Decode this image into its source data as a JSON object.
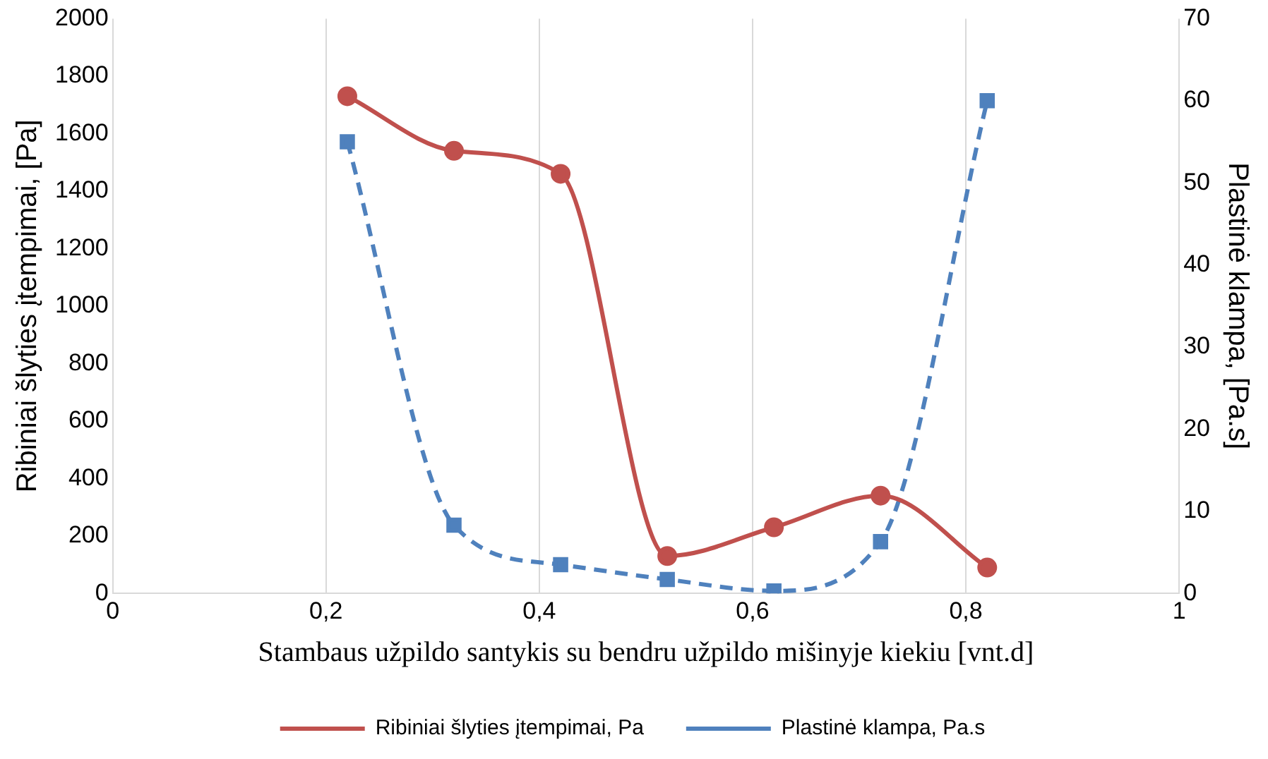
{
  "chart_data": {
    "type": "line",
    "xlabel": "Stambaus užpildo santykis su bendru užpildo mišinyje kiekiu [vnt.d]",
    "ylabel": "Ribiniai šlyties įtempimai, [Pa]",
    "y2label": "Plastinė klampa, [Pa.s]",
    "x": [
      0.22,
      0.32,
      0.42,
      0.52,
      0.62,
      0.72,
      0.82
    ],
    "series": [
      {
        "name": "Ribiniai šlyties įtempimai, Pa",
        "color": "#c0504d",
        "values": [
          1730,
          1540,
          1460,
          130,
          230,
          340,
          90
        ],
        "marker": "circle",
        "line_style": "solid"
      },
      {
        "name": "Plastinė klampa, Pa.s",
        "color": "#4f81bd",
        "axis": "y2",
        "values": [
          55,
          8.3,
          3.5,
          1.7,
          0.3,
          6.3,
          60
        ],
        "marker": "square",
        "line_style": "dashed"
      }
    ],
    "xlim": [
      0,
      1
    ],
    "xticks": [
      0,
      {
        "value": 0.2,
        "label": "0,2"
      },
      {
        "value": 0.4,
        "label": "0,4"
      },
      {
        "value": 0.6,
        "label": "0,6"
      },
      {
        "value": 0.8,
        "label": "0,8"
      },
      1
    ],
    "ylim": [
      0,
      2000
    ],
    "yticks": [
      0,
      200,
      400,
      600,
      800,
      1000,
      1200,
      1400,
      1600,
      1800,
      2000
    ],
    "y2lim": [
      0,
      70
    ],
    "y2ticks": [
      0,
      10,
      20,
      30,
      40,
      50,
      60,
      70
    ],
    "grid": "x",
    "legend": "bottom"
  }
}
